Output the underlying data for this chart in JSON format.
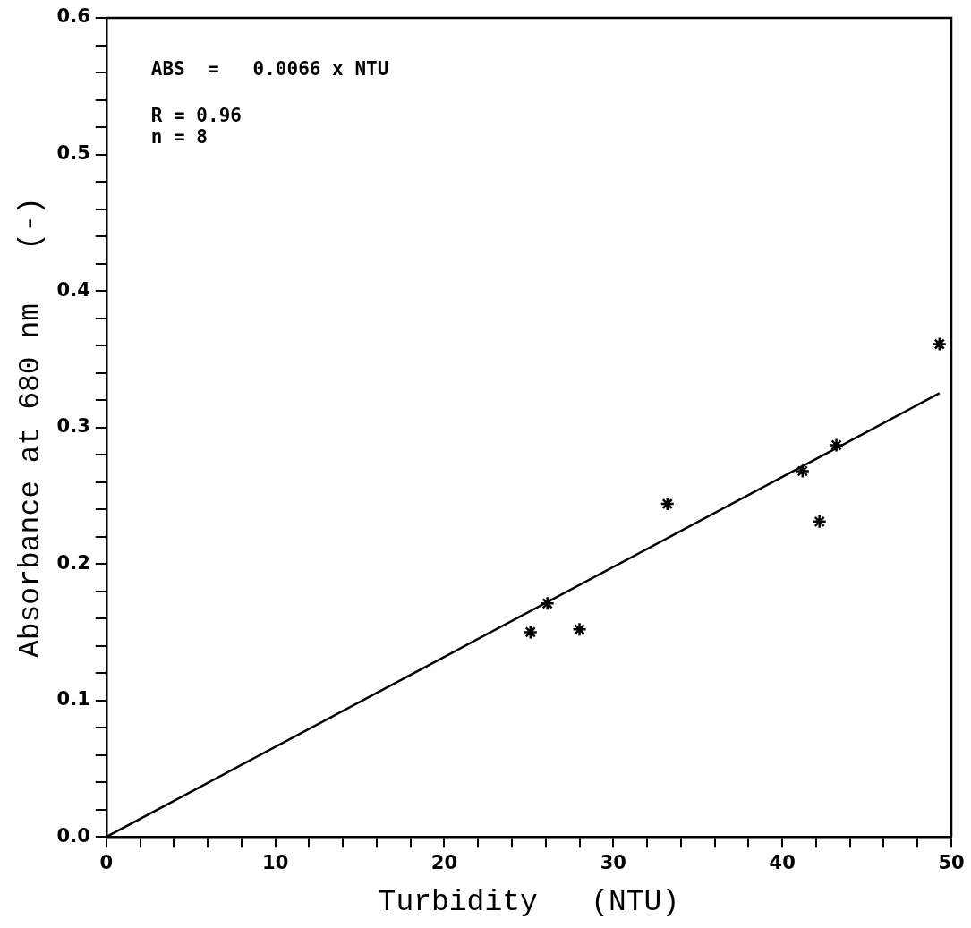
{
  "chart_data": {
    "type": "scatter",
    "xlabel": "Turbidity   (NTU)",
    "ylabel": "Absorbance at 680 nm   (-)",
    "annotations": [
      "ABS  =   0.0066 x NTU",
      "R = 0.96",
      "n = 8"
    ],
    "series": [
      {
        "color": "#000000",
        "marker": "cross",
        "x": [
          25.1,
          26.1,
          28.0,
          33.2,
          41.2,
          42.2,
          43.2,
          49.3
        ],
        "values": [
          0.15,
          0.171,
          0.152,
          0.244,
          0.268,
          0.231,
          0.287,
          0.361
        ]
      },
      {
        "type": "line",
        "color": "#000000",
        "marker": "none",
        "line_style": "solid",
        "x": [
          0,
          49.3
        ],
        "values": [
          0,
          0.325
        ]
      }
    ],
    "xlim": [
      0,
      50
    ],
    "xticks": [
      0,
      {
        "value": 2,
        "label": null
      },
      {
        "value": 4,
        "label": null
      },
      {
        "value": 6,
        "label": null
      },
      {
        "value": 8,
        "label": null
      },
      10,
      {
        "value": 12,
        "label": null
      },
      {
        "value": 14,
        "label": null
      },
      {
        "value": 16,
        "label": null
      },
      {
        "value": 18,
        "label": null
      },
      20,
      {
        "value": 22,
        "label": null
      },
      {
        "value": 24,
        "label": null
      },
      {
        "value": 26,
        "label": null
      },
      {
        "value": 28,
        "label": null
      },
      30,
      {
        "value": 32,
        "label": null
      },
      {
        "value": 34,
        "label": null
      },
      {
        "value": 36,
        "label": null
      },
      {
        "value": 38,
        "label": null
      },
      40,
      {
        "value": 42,
        "label": null
      },
      {
        "value": 44,
        "label": null
      },
      {
        "value": 46,
        "label": null
      },
      {
        "value": 48,
        "label": null
      },
      50
    ],
    "ylim": [
      0,
      0.6
    ],
    "yticks": [
      {
        "value": 0,
        "label": "0.0"
      },
      {
        "value": 0.02,
        "label": null
      },
      {
        "value": 0.04,
        "label": null
      },
      {
        "value": 0.06,
        "label": null
      },
      {
        "value": 0.08,
        "label": null
      },
      0.1,
      {
        "value": 0.12,
        "label": null
      },
      {
        "value": 0.14,
        "label": null
      },
      {
        "value": 0.16,
        "label": null
      },
      {
        "value": 0.18,
        "label": null
      },
      0.2,
      {
        "value": 0.22,
        "label": null
      },
      {
        "value": 0.24,
        "label": null
      },
      {
        "value": 0.26,
        "label": null
      },
      {
        "value": 0.28,
        "label": null
      },
      0.3,
      {
        "value": 0.32,
        "label": null
      },
      {
        "value": 0.34,
        "label": null
      },
      {
        "value": 0.36,
        "label": null
      },
      {
        "value": 0.38,
        "label": null
      },
      0.4,
      {
        "value": 0.42,
        "label": null
      },
      {
        "value": 0.44,
        "label": null
      },
      {
        "value": 0.46,
        "label": null
      },
      {
        "value": 0.48,
        "label": null
      },
      0.5,
      {
        "value": 0.52,
        "label": null
      },
      {
        "value": 0.54,
        "label": null
      },
      {
        "value": 0.56,
        "label": null
      },
      {
        "value": 0.58,
        "label": null
      },
      0.6
    ],
    "grid": false,
    "legend": false
  }
}
